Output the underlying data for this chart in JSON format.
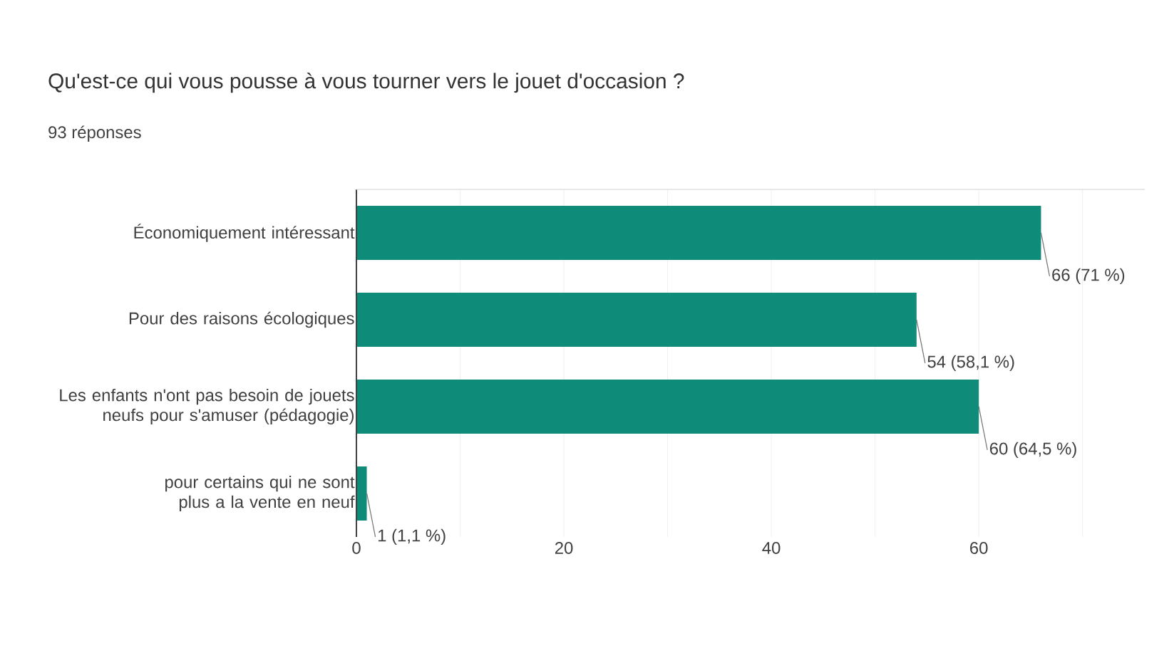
{
  "chart_data": {
    "type": "bar",
    "orientation": "horizontal",
    "title": "Qu'est-ce qui vous pousse à vous tourner vers le jouet d'occasion ?",
    "subtitle": "93 réponses",
    "categories": [
      "Économiquement intéressant",
      "Pour des raisons écologiques",
      "Les enfants n'ont pas besoin de jouets neufs pour s'amuser (pédagogie)",
      "pour certains qui ne sont plus a la vente en neuf"
    ],
    "values": [
      66,
      54,
      60,
      1
    ],
    "value_labels": [
      "66 (71 %)",
      "54 (58,1 %)",
      "60 (64,5 %)",
      "1 (1,1 %)"
    ],
    "color": "#0f8b7a",
    "xlim": [
      0,
      76
    ],
    "xticks": [
      0,
      {
        "value": 10,
        "label": null
      },
      20,
      {
        "value": 30,
        "label": null
      },
      40,
      {
        "value": 50,
        "label": null
      },
      60,
      {
        "value": 70,
        "label": null
      }
    ],
    "grid": "x"
  }
}
